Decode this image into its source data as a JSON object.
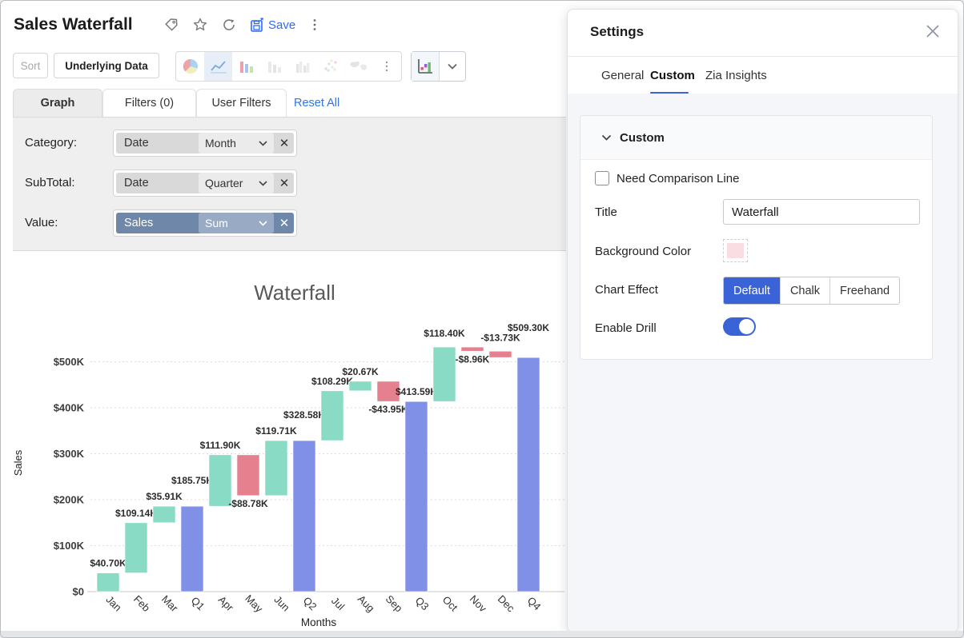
{
  "header": {
    "title": "Sales Waterfall",
    "icons": [
      "tag",
      "star",
      "refresh",
      "save",
      "more-vertical"
    ],
    "save_label": "Save"
  },
  "toolbar": {
    "sort_label": "Sort",
    "underlying_data_label": "Underlying Data",
    "chart_type_icons": [
      "pie",
      "line",
      "bar",
      "stacked-bar",
      "grouped-bar",
      "scatter",
      "map",
      "more"
    ],
    "highlighted_icon": "line",
    "current_chart_type": "waterfall"
  },
  "view_tabs": {
    "graph": "Graph",
    "filters": "Filters  (0)",
    "user_filters": "User Filters",
    "reset_all": "Reset All"
  },
  "config": {
    "category": {
      "label": "Category:",
      "field": "Date",
      "modifier": "Month"
    },
    "subtotal": {
      "label": "SubTotal:",
      "field": "Date",
      "modifier": "Quarter"
    },
    "value": {
      "label": "Value:",
      "field": "Sales",
      "modifier": "Sum"
    }
  },
  "settings": {
    "title": "Settings",
    "tabs": [
      "General",
      "Custom",
      "Zia Insights"
    ],
    "active_tab": "Custom",
    "section_title": "Custom",
    "comparison_line_label": "Need Comparison Line",
    "comparison_line_checked": false,
    "title_label": "Title",
    "title_value": "Waterfall",
    "background_color_label": "Background Color",
    "background_color_value": "#f8dde2",
    "chart_effect_label": "Chart Effect",
    "chart_effect_options": [
      "Default",
      "Chalk",
      "Freehand"
    ],
    "chart_effect_selected": "Default",
    "enable_drill_label": "Enable Drill",
    "enable_drill_on": true
  },
  "colors": {
    "accent": "#3a63d8",
    "link_blue": "#2e75e6",
    "increase_bar": "#8adbc5",
    "decrease_bar": "#e5818f",
    "subtotal_bar": "#8090e7"
  },
  "chart_data": {
    "type": "bar",
    "variant": "waterfall",
    "title": "Waterfall",
    "xlabel": "Months",
    "ylabel": "Sales",
    "ylim_k": [
      0,
      550
    ],
    "grid": "dashed-horizontal",
    "legend": "none",
    "y_ticks": [
      {
        "v": 0,
        "label": "$0"
      },
      {
        "v": 100,
        "label": "$100K"
      },
      {
        "v": 200,
        "label": "$200K"
      },
      {
        "v": 300,
        "label": "$300K"
      },
      {
        "v": 400,
        "label": "$400K"
      },
      {
        "v": 500,
        "label": "$500K"
      }
    ],
    "points": [
      {
        "category": "Jan",
        "kind": "increase",
        "value_k": 40.7,
        "start_k": 0,
        "end_k": 40.7,
        "label": "$40.70K",
        "label_pos": "above",
        "label_dy": 0
      },
      {
        "category": "Feb",
        "kind": "increase",
        "value_k": 109.14,
        "start_k": 40.7,
        "end_k": 149.84,
        "label": "$109.14K",
        "label_pos": "above",
        "label_dy": 0
      },
      {
        "category": "Mar",
        "kind": "increase",
        "value_k": 35.91,
        "start_k": 149.84,
        "end_k": 185.75,
        "label": "$35.91K",
        "label_pos": "above",
        "label_dy": 0
      },
      {
        "category": "Q1",
        "kind": "subtotal",
        "value_k": 185.75,
        "start_k": 0,
        "end_k": 185.75,
        "label": "$185.75K",
        "label_pos": "above",
        "label_dy": -20
      },
      {
        "category": "Apr",
        "kind": "increase",
        "value_k": 111.9,
        "start_k": 185.75,
        "end_k": 297.65,
        "label": "$111.90K",
        "label_pos": "above",
        "label_dy": 0
      },
      {
        "category": "May",
        "kind": "decrease",
        "value_k": -88.78,
        "start_k": 297.65,
        "end_k": 208.87,
        "label": "-$88.78K",
        "label_pos": "below",
        "label_dy": 0
      },
      {
        "category": "Jun",
        "kind": "increase",
        "value_k": 119.71,
        "start_k": 208.87,
        "end_k": 328.58,
        "label": "$119.71K",
        "label_pos": "above",
        "label_dy": 0
      },
      {
        "category": "Q2",
        "kind": "subtotal",
        "value_k": 328.58,
        "start_k": 0,
        "end_k": 328.58,
        "label": "$328.58K",
        "label_pos": "above",
        "label_dy": -20
      },
      {
        "category": "Jul",
        "kind": "increase",
        "value_k": 108.29,
        "start_k": 328.58,
        "end_k": 436.87,
        "label": "$108.29K",
        "label_pos": "above",
        "label_dy": 0
      },
      {
        "category": "Aug",
        "kind": "increase",
        "value_k": 20.67,
        "start_k": 436.87,
        "end_k": 457.54,
        "label": "$20.67K",
        "label_pos": "above",
        "label_dy": 0
      },
      {
        "category": "Sep",
        "kind": "decrease",
        "value_k": -43.95,
        "start_k": 457.54,
        "end_k": 413.59,
        "label": "-$43.95K",
        "label_pos": "below",
        "label_dy": 0
      },
      {
        "category": "Q3",
        "kind": "subtotal",
        "value_k": 413.59,
        "start_k": 0,
        "end_k": 413.59,
        "label": "$413.59K",
        "label_pos": "above",
        "label_dy": 0
      },
      {
        "category": "Oct",
        "kind": "increase",
        "value_k": 118.4,
        "start_k": 413.59,
        "end_k": 531.99,
        "label": "$118.40K",
        "label_pos": "above",
        "label_dy": -5
      },
      {
        "category": "Nov",
        "kind": "decrease",
        "value_k": -8.96,
        "start_k": 531.99,
        "end_k": 523.03,
        "label": "-$8.96K",
        "label_pos": "below",
        "label_dy": 0
      },
      {
        "category": "Dec",
        "kind": "decrease",
        "value_k": -13.73,
        "start_k": 523.03,
        "end_k": 509.3,
        "label": "-$13.73K",
        "label_pos": "above",
        "label_dy": -5
      },
      {
        "category": "Q4",
        "kind": "subtotal",
        "value_k": 509.3,
        "start_k": 0,
        "end_k": 509.3,
        "label": "$509.30K",
        "label_pos": "above",
        "label_dy": -25
      }
    ]
  }
}
